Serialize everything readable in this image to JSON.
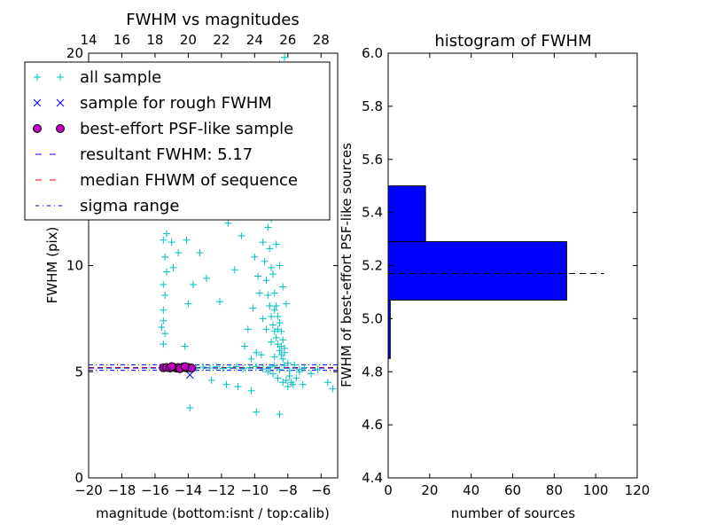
{
  "chart_data": [
    {
      "type": "scatter",
      "title": "FWHM vs magnitudes",
      "xlabel": "magnitude (bottom:isnt / top:calib)",
      "ylabel": "FWHM (pix)",
      "xlim": [
        -20,
        -5
      ],
      "ylim": [
        0,
        20
      ],
      "xticks": [
        "−20",
        "−18",
        "−16",
        "−14",
        "−12",
        "−10",
        "−8",
        "−6"
      ],
      "xtick_values": [
        -20,
        -18,
        -16,
        -14,
        -12,
        -10,
        -8,
        -6
      ],
      "yticks": [
        "0",
        "5",
        "10"
      ],
      "ytick_values": [
        0,
        5,
        10
      ],
      "top_xticks": [
        "14",
        "16",
        "18",
        "20",
        "22",
        "24",
        "26",
        "28"
      ],
      "top_xtick_values": [
        14,
        16,
        18,
        20,
        22,
        24,
        26,
        28
      ],
      "top_offset": 34,
      "lines": {
        "resultant_fwhm": 5.17,
        "median_fwhm": 5.2,
        "sigma_low": 5.07,
        "sigma_high": 5.33
      },
      "series": [
        {
          "name": "all sample",
          "marker": "plus",
          "color": "#00bfbf",
          "points": [
            [
              -15.6,
              5.19
            ],
            [
              -15.3,
              5.2
            ],
            [
              -14.9,
              5.18
            ],
            [
              -14.6,
              5.22
            ],
            [
              -14.2,
              5.17
            ],
            [
              -13.9,
              5.21
            ],
            [
              -13.5,
              5.16
            ],
            [
              -13.1,
              5.22
            ],
            [
              -12.7,
              5.18
            ],
            [
              -12.3,
              5.23
            ],
            [
              -11.9,
              5.15
            ],
            [
              -11.5,
              5.2
            ],
            [
              -11.1,
              5.24
            ],
            [
              -10.7,
              5.14
            ],
            [
              -10.3,
              5.19
            ],
            [
              -9.9,
              5.25
            ],
            [
              -9.5,
              5.13
            ],
            [
              -9.1,
              5.22
            ],
            [
              -8.8,
              5.27
            ],
            [
              -8.5,
              5.1
            ],
            [
              -8.2,
              5.3
            ],
            [
              -7.9,
              5.05
            ],
            [
              -7.6,
              5.32
            ],
            [
              -7.3,
              5.1
            ],
            [
              -7.0,
              5.2
            ],
            [
              -6.6,
              4.9
            ],
            [
              -6.2,
              5.1
            ],
            [
              -5.6,
              4.5
            ],
            [
              -5.3,
              4.2
            ],
            [
              -15.5,
              7.9
            ],
            [
              -15.5,
              7.4
            ],
            [
              -15.4,
              8.6
            ],
            [
              -15.5,
              9.1
            ],
            [
              -15.4,
              6.8
            ],
            [
              -15.5,
              6.3
            ],
            [
              -15.4,
              10.4
            ],
            [
              -15.5,
              11.2
            ],
            [
              -15.4,
              12.6
            ],
            [
              -15.3,
              9.7
            ],
            [
              -15.6,
              7.1
            ],
            [
              -15.0,
              11.1
            ],
            [
              -15.3,
              11.5
            ],
            [
              -14.9,
              12.3
            ],
            [
              -14.6,
              12.8
            ],
            [
              -14.4,
              13.9
            ],
            [
              -14.6,
              10.6
            ],
            [
              -14.9,
              9.9
            ],
            [
              -14.1,
              11.2
            ],
            [
              -13.7,
              9.1
            ],
            [
              -13.8,
              13.1
            ],
            [
              -14.3,
              12.5
            ],
            [
              -14.2,
              6.2
            ],
            [
              -14.0,
              8.2
            ],
            [
              -13.3,
              10.6
            ],
            [
              -12.9,
              9.4
            ],
            [
              -12.5,
              12.9
            ],
            [
              -12.1,
              8.3
            ],
            [
              -11.6,
              12.0
            ],
            [
              -11.2,
              9.8
            ],
            [
              -10.8,
              11.4
            ],
            [
              -10.5,
              13.2
            ],
            [
              -11.7,
              4.4
            ],
            [
              -11.0,
              4.3
            ],
            [
              -10.2,
              4.1
            ],
            [
              -12.6,
              4.6
            ],
            [
              -13.9,
              3.3
            ],
            [
              -9.9,
              3.1
            ],
            [
              -8.5,
              3.0
            ],
            [
              -9.6,
              12.4
            ],
            [
              -9.5,
              11.1
            ],
            [
              -9.4,
              10.2
            ],
            [
              -9.3,
              9.3
            ],
            [
              -9.2,
              8.6
            ],
            [
              -9.1,
              8.1
            ],
            [
              -9.3,
              13.3
            ],
            [
              -9.6,
              14.1
            ],
            [
              -9.0,
              7.6
            ],
            [
              -8.9,
              7.2
            ],
            [
              -8.8,
              6.9
            ],
            [
              -8.7,
              6.6
            ],
            [
              -8.6,
              6.3
            ],
            [
              -8.5,
              6.0
            ],
            [
              -8.4,
              5.8
            ],
            [
              -8.3,
              5.6
            ],
            [
              -9.1,
              10.8
            ],
            [
              -8.9,
              9.6
            ],
            [
              -8.8,
              8.7
            ],
            [
              -8.7,
              8.1
            ],
            [
              -8.6,
              7.6
            ],
            [
              -8.5,
              7.3
            ],
            [
              -8.4,
              6.9
            ],
            [
              -8.3,
              6.5
            ],
            [
              -8.2,
              6.1
            ],
            [
              -9.0,
              9.9
            ],
            [
              -9.2,
              11.8
            ],
            [
              -9.4,
              12.9
            ],
            [
              -8.8,
              7.9
            ],
            [
              -8.6,
              7.0
            ],
            [
              -8.4,
              6.2
            ],
            [
              -8.2,
              5.9
            ],
            [
              -8.0,
              5.4
            ],
            [
              -7.9,
              4.8
            ],
            [
              -7.8,
              4.5
            ],
            [
              -8.0,
              4.3
            ],
            [
              -8.3,
              4.5
            ],
            [
              -8.6,
              4.7
            ],
            [
              -8.9,
              4.9
            ],
            [
              -9.2,
              5.0
            ],
            [
              -8.1,
              4.6
            ],
            [
              -7.7,
              4.4
            ],
            [
              -7.5,
              4.7
            ],
            [
              -7.3,
              5.0
            ],
            [
              -7.1,
              4.4
            ],
            [
              -8.8,
              5.7
            ],
            [
              -9.0,
              6.4
            ],
            [
              -9.3,
              7.0
            ],
            [
              -9.5,
              7.5
            ],
            [
              -9.7,
              8.7
            ],
            [
              -9.8,
              9.5
            ],
            [
              -10.0,
              10.4
            ],
            [
              -10.2,
              5.6
            ],
            [
              -9.9,
              5.9
            ],
            [
              -9.6,
              5.8
            ],
            [
              -8.9,
              14.8
            ],
            [
              -9.1,
              15.8
            ],
            [
              -9.3,
              17.2
            ],
            [
              -8.7,
              18.1
            ],
            [
              -8.5,
              19.5
            ],
            [
              -9.2,
              19.2
            ],
            [
              -8.2,
              19.8
            ],
            [
              -9.6,
              17.6
            ],
            [
              -8.8,
              16.6
            ],
            [
              -9.0,
              12.2
            ],
            [
              -8.7,
              11.0
            ],
            [
              -8.5,
              10.0
            ],
            [
              -8.3,
              9.0
            ],
            [
              -8.1,
              8.2
            ],
            [
              -10.1,
              8.0
            ],
            [
              -10.4,
              7.0
            ],
            [
              -10.6,
              6.2
            ]
          ]
        },
        {
          "name": "sample for rough FWHM",
          "marker": "x",
          "color": "#0000ff",
          "points": [
            [
              -15.2,
              5.19
            ],
            [
              -14.8,
              5.21
            ],
            [
              -14.5,
              5.18
            ],
            [
              -14.3,
              5.16
            ],
            [
              -14.0,
              5.22
            ],
            [
              -13.9,
              4.85
            ]
          ]
        },
        {
          "name": "best-effort PSF-like sample",
          "marker": "circle",
          "color": "#bf00bf",
          "points": [
            [
              -15.5,
              5.19
            ],
            [
              -15.3,
              5.2
            ],
            [
              -15.1,
              5.18
            ],
            [
              -14.9,
              5.21
            ],
            [
              -14.7,
              5.17
            ],
            [
              -14.6,
              5.2
            ],
            [
              -14.4,
              5.19
            ],
            [
              -14.3,
              5.22
            ],
            [
              -14.1,
              5.18
            ],
            [
              -14.0,
              5.2
            ],
            [
              -13.8,
              5.17
            ],
            [
              -15.0,
              5.24
            ],
            [
              -14.5,
              5.15
            ],
            [
              -14.2,
              5.24
            ]
          ]
        }
      ],
      "legend": {
        "placement": "upper-left",
        "entries": [
          {
            "label": "all sample",
            "kind": "plus",
            "color": "#00bfbf"
          },
          {
            "label": "sample for rough FWHM",
            "kind": "x",
            "color": "#0000ff"
          },
          {
            "label": "best-effort PSF-like sample",
            "kind": "circle",
            "color": "#bf00bf"
          },
          {
            "label": "resultant FWHM: 5.17",
            "kind": "dashed",
            "color": "#0000ff"
          },
          {
            "label": "median FHWM of sequence",
            "kind": "dashed",
            "color": "#ff0000"
          },
          {
            "label": "sigma range",
            "kind": "dashdot",
            "color": "#0000ff"
          }
        ]
      }
    },
    {
      "type": "bar",
      "orientation": "horizontal",
      "title": "histogram of FWHM",
      "xlabel": "number of sources",
      "ylabel": "FWHM of best-effort PSF-like sources",
      "xlim": [
        0,
        120
      ],
      "ylim": [
        4.4,
        6.0
      ],
      "xticks": [
        "0",
        "20",
        "40",
        "60",
        "80",
        "100",
        "120"
      ],
      "xtick_values": [
        0,
        20,
        40,
        60,
        80,
        100,
        120
      ],
      "yticks": [
        "4.4",
        "4.6",
        "4.8",
        "5.0",
        "5.2",
        "5.4",
        "5.6",
        "5.8",
        "6.0"
      ],
      "ytick_values": [
        4.4,
        4.6,
        4.8,
        5.0,
        5.2,
        5.4,
        5.6,
        5.8,
        6.0
      ],
      "color": "#0000ff",
      "bins": [
        {
          "low": 4.85,
          "high": 5.07,
          "count": 1
        },
        {
          "low": 5.07,
          "high": 5.29,
          "count": 86
        },
        {
          "low": 5.29,
          "high": 5.5,
          "count": 18
        }
      ],
      "reference_line": {
        "y": 5.17,
        "x_range": [
          0,
          104
        ],
        "style": "dashed",
        "color": "#000000"
      }
    }
  ]
}
